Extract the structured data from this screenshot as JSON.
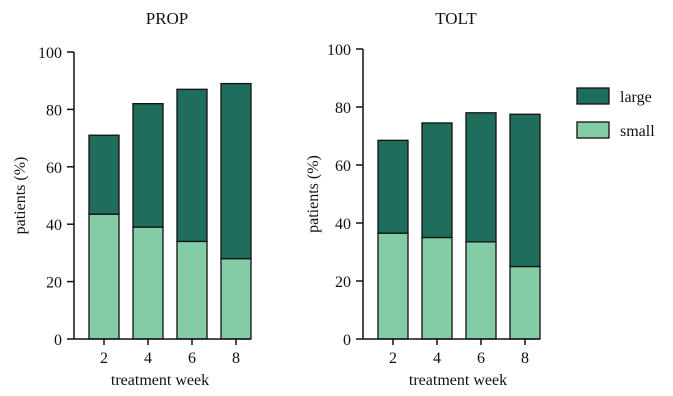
{
  "chart_data": [
    {
      "type": "bar",
      "stacked": true,
      "title": "PROP",
      "xlabel": "treatment week",
      "ylabel": "patients (%)",
      "categories": [
        "2",
        "4",
        "6",
        "8"
      ],
      "ylim": [
        0,
        100
      ],
      "yticks": [
        "0",
        "20",
        "40",
        "60",
        "80",
        "100"
      ],
      "series": [
        {
          "name": "small",
          "values": [
            43.5,
            39,
            34,
            28
          ]
        },
        {
          "name": "large",
          "values": [
            27.5,
            43,
            53,
            61
          ]
        }
      ]
    },
    {
      "type": "bar",
      "stacked": true,
      "title": "TOLT",
      "xlabel": "treatment week",
      "ylabel": "patients (%)",
      "categories": [
        "2",
        "4",
        "6",
        "8"
      ],
      "ylim": [
        0,
        100
      ],
      "yticks": [
        "0",
        "20",
        "40",
        "60",
        "80",
        "100"
      ],
      "series": [
        {
          "name": "small",
          "values": [
            36.5,
            35,
            33.5,
            25
          ]
        },
        {
          "name": "large",
          "values": [
            32,
            39.5,
            44.5,
            52.5
          ]
        }
      ]
    }
  ],
  "legend": {
    "placement": "right",
    "items": [
      {
        "name": "large",
        "color": "#1f6e5c"
      },
      {
        "name": "small",
        "color": "#84cca6"
      }
    ]
  },
  "colors": {
    "large": "#1f6e5c",
    "small": "#84cca6",
    "outline": "#111111"
  }
}
